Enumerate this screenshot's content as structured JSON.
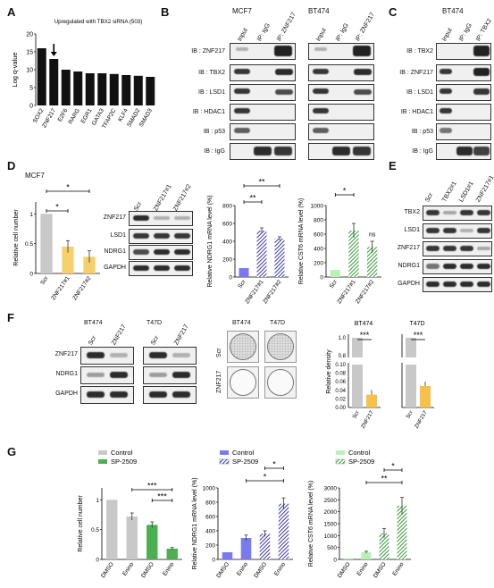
{
  "panels": {
    "A": "A",
    "B": "B",
    "C": "C",
    "D": "D",
    "E": "E",
    "F": "F",
    "G": "G"
  },
  "A": {
    "title": "Upregulated with TBX2 siRNA (503)",
    "ylabel": "Log q-value",
    "chart_data": {
      "type": "bar",
      "categories": [
        "SOX2",
        "ZNF217",
        "E2F6",
        "RARG",
        "EGR1",
        "GATA3",
        "TFAP2C",
        "KLF4",
        "SMAD2",
        "SMAD3"
      ],
      "values": [
        16,
        13,
        10,
        9.5,
        9,
        9,
        8.8,
        8.5,
        8.3,
        8
      ],
      "ylim": [
        0,
        20
      ],
      "yticks": [
        0,
        5,
        10,
        15,
        20
      ]
    }
  },
  "B": {
    "cell1": "MCF7",
    "cell2": "BT474",
    "lanes": [
      "Input",
      "IP: IgG",
      "IP: ZNF217"
    ],
    "rows": [
      "IB : ZNF217",
      "IB : TBX2",
      "IB : LSD1",
      "IB : HDAC1",
      "IB : p53",
      "IB : IgG"
    ]
  },
  "C": {
    "cell": "BT474",
    "lanes": [
      "Input",
      "IP: IgG",
      "IP: TBX2"
    ],
    "rows": [
      "IB : TBX2",
      "IB : ZNF217",
      "IB : LSD1",
      "IB : HDAC1",
      "IB : p53",
      "IB : IgG"
    ]
  },
  "D": {
    "cell": "MCF7",
    "cellnum": {
      "ylabel": "Relative cell number",
      "chart_data": {
        "type": "bar",
        "categories": [
          "Scr",
          "ZNF217#1",
          "ZNF217#2"
        ],
        "values": [
          1.0,
          0.45,
          0.28
        ],
        "ylim": [
          0,
          1.2
        ],
        "yticks": [
          0,
          0.5,
          1.0
        ],
        "colors": [
          "#c8c8c8",
          "#f7d06b",
          "#f7d06b"
        ]
      },
      "sig": [
        "*",
        "*"
      ]
    },
    "blot": {
      "lanes": [
        "Scr",
        "ZNF217#1",
        "ZNF217#2"
      ],
      "rows": [
        "ZNF217",
        "LSD1",
        "NDRG1",
        "GAPDH"
      ]
    },
    "ndrg1": {
      "ylabel": "Relative NDRG1 mRNA level (%)",
      "chart_data": {
        "type": "bar",
        "categories": [
          "Scr",
          "ZNF217#1",
          "ZNF217#2"
        ],
        "values": [
          100,
          520,
          430
        ],
        "ylim": [
          0,
          800
        ],
        "yticks": [
          0,
          200,
          400,
          600,
          800
        ],
        "colors": [
          "#7a7af0",
          "#3b3b9e",
          "#3b3b9e"
        ]
      },
      "sig": [
        "**",
        "**"
      ]
    },
    "cst6": {
      "ylabel": "Relative CST6 mRNA level (%)",
      "chart_data": {
        "type": "bar",
        "categories": [
          "Scr",
          "ZNF217#1",
          "ZNF217#2"
        ],
        "values": [
          100,
          650,
          420
        ],
        "ylim": [
          0,
          1000
        ],
        "yticks": [
          0,
          200,
          400,
          600,
          800,
          1000
        ],
        "colors": [
          "#b9f0b9",
          "#4caf50",
          "#4caf50"
        ]
      },
      "sig": [
        "*",
        "ns"
      ]
    }
  },
  "E": {
    "lanes": [
      "Scr",
      "TBX2#1",
      "LSD1#1",
      "ZNF217#1"
    ],
    "rows": [
      "TBX2",
      "LSD1",
      "ZNF217",
      "NDRG1",
      "GAPDH"
    ]
  },
  "F": {
    "cells": [
      "BT474",
      "T47D"
    ],
    "blot": {
      "lanes": [
        "Scr",
        "ZNF217"
      ],
      "rows": [
        "ZNF217",
        "NDRG1",
        "GAPDH"
      ]
    },
    "dish_cells": [
      "BT474",
      "T47D"
    ],
    "dish_rows": [
      "Scr",
      "ZNF217"
    ],
    "density": {
      "ylabel": "Relative density",
      "chart_data": [
        {
          "type": "bar",
          "title": "BT474",
          "categories": [
            "Scr",
            "ZNF217"
          ],
          "values": [
            1.0,
            0.03
          ],
          "colors": [
            "#c8c8c8",
            "#f7c04b"
          ]
        },
        {
          "type": "bar",
          "title": "T47D",
          "categories": [
            "Scr",
            "ZNF217"
          ],
          "values": [
            1.0,
            0.05
          ],
          "colors": [
            "#c8c8c8",
            "#f7c04b"
          ]
        }
      ],
      "yticks_upper": [
        "0.8",
        "1.0"
      ],
      "yticks_lower": [
        "0.00",
        "0.02",
        "0.04",
        "0.06",
        "0.08",
        "0.10"
      ],
      "sig": [
        "***",
        "***"
      ]
    }
  },
  "G": {
    "legend1": [
      "Control",
      "SP-2509"
    ],
    "cellnum": {
      "ylabel": "Relative cell number",
      "chart_data": {
        "type": "bar",
        "categories": [
          "DMSO",
          "Enino",
          "DMSO",
          "Enino"
        ],
        "values": [
          1.0,
          0.72,
          0.58,
          0.18
        ],
        "ylim": [
          0,
          1.2
        ],
        "yticks": [
          0,
          0.5,
          1.0
        ],
        "colors": [
          "#c8c8c8",
          "#c8c8c8",
          "#4caf50",
          "#4caf50"
        ]
      },
      "sig": [
        "***",
        "***"
      ]
    },
    "ndrg1": {
      "ylabel": "Relative NDRG1 mRNA level (%)",
      "legend": [
        "Control",
        "SP-2509"
      ],
      "chart_data": {
        "type": "bar",
        "categories": [
          "DMSO",
          "Enino",
          "DMSO",
          "Enino"
        ],
        "values": [
          100,
          300,
          360,
          780
        ],
        "ylim": [
          0,
          1000
        ],
        "yticks": [
          0,
          200,
          400,
          600,
          800,
          1000
        ],
        "colors": [
          "#7a7af0",
          "#7a7af0",
          "#3b3b9e",
          "#3b3b9e"
        ]
      },
      "sig": [
        "*",
        "*"
      ]
    },
    "cst6": {
      "ylabel": "Relative CST6 mRNA level (%)",
      "legend": [
        "Control",
        "SP-2509"
      ],
      "chart_data": {
        "type": "bar",
        "categories": [
          "DMSO",
          "Enino",
          "DMSO",
          "Enino"
        ],
        "values": [
          50,
          300,
          1100,
          2250
        ],
        "ylim": [
          0,
          3000
        ],
        "yticks": [
          0,
          500,
          1000,
          1500,
          2000,
          2500,
          3000
        ],
        "colors": [
          "#b9f0b9",
          "#b9f0b9",
          "#4caf50",
          "#4caf50"
        ]
      },
      "sig": [
        "*",
        "**"
      ]
    }
  }
}
